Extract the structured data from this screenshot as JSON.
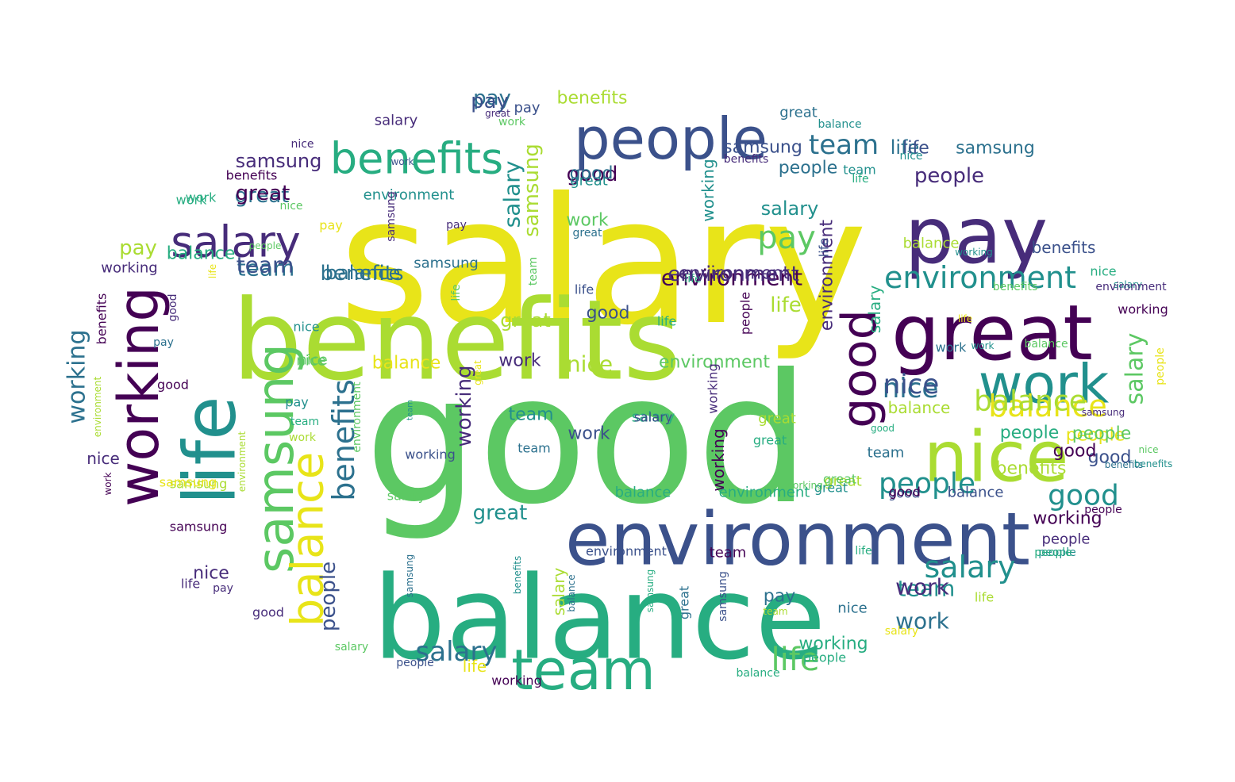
{
  "palette": {
    "v0": "#440154",
    "v1": "#472c7a",
    "v2": "#3b518b",
    "v3": "#2c718e",
    "v4": "#21908d",
    "v5": "#27ad81",
    "v6": "#5cc863",
    "v7": "#aadc32",
    "v8": "#e8e419"
  },
  "words": [
    {
      "text": "salary",
      "c": "v8"
    },
    {
      "text": "good",
      "c": "v6"
    },
    {
      "text": "benefits",
      "c": "v7"
    },
    {
      "text": "balance",
      "c": "v5"
    },
    {
      "text": "environment",
      "c": "v2"
    },
    {
      "text": "great",
      "c": "v0"
    },
    {
      "text": "pay",
      "c": "v1"
    },
    {
      "text": "people",
      "c": "v2"
    },
    {
      "text": "nice",
      "c": "v7"
    },
    {
      "text": "work",
      "c": "v4"
    },
    {
      "text": "life",
      "c": "v4"
    },
    {
      "text": "working",
      "c": "v0"
    },
    {
      "text": "samsung",
      "c": "v6"
    },
    {
      "text": "team",
      "c": "v5"
    },
    {
      "text": "benefits",
      "c": "v5"
    },
    {
      "text": "salary",
      "c": "v1"
    },
    {
      "text": "environment",
      "c": "v4"
    },
    {
      "text": "good",
      "c": "v0"
    },
    {
      "text": "balance",
      "c": "v8"
    },
    {
      "text": "samsung",
      "c": "v6"
    },
    {
      "text": "benefits",
      "c": "v3"
    },
    {
      "text": "balance",
      "c": "v8"
    },
    {
      "text": "people",
      "c": "v4"
    },
    {
      "text": "good",
      "c": "v4"
    },
    {
      "text": "salary",
      "c": "v3"
    },
    {
      "text": "salary",
      "c": "v4"
    },
    {
      "text": "samsung",
      "c": "v7"
    },
    {
      "text": "nice",
      "c": "v3"
    },
    {
      "text": "environment",
      "c": "v0"
    },
    {
      "text": "pay",
      "c": "v6"
    },
    {
      "text": "people",
      "c": "v2"
    },
    {
      "text": "salary",
      "c": "v4"
    },
    {
      "text": "team",
      "c": "v3"
    },
    {
      "text": "life",
      "c": "v7"
    },
    {
      "text": "great",
      "c": "v3"
    },
    {
      "text": "good",
      "c": "v0"
    },
    {
      "text": "team",
      "c": "v3"
    },
    {
      "text": "great",
      "c": "v7"
    },
    {
      "text": "working",
      "c": "v3"
    },
    {
      "text": "benefits",
      "c": "v5"
    },
    {
      "text": "working",
      "c": "v4"
    },
    {
      "text": "salary",
      "c": "v5"
    },
    {
      "text": "team",
      "c": "v4"
    },
    {
      "text": "working",
      "c": "v1"
    },
    {
      "text": "benefits",
      "c": "v3"
    },
    {
      "text": "people",
      "c": "v1"
    },
    {
      "text": "salary",
      "c": "v6"
    },
    {
      "text": "balance",
      "c": "v3"
    },
    {
      "text": "people",
      "c": "v8"
    },
    {
      "text": "people",
      "c": "v1"
    },
    {
      "text": "good",
      "c": "v2"
    },
    {
      "text": "good",
      "c": "v2"
    },
    {
      "text": "nice",
      "c": "v3"
    },
    {
      "text": "great",
      "c": "v4"
    },
    {
      "text": "great",
      "c": "v7"
    },
    {
      "text": "environment",
      "c": "v1"
    },
    {
      "text": "pay",
      "c": "v3"
    },
    {
      "text": "pay",
      "c": "v3"
    },
    {
      "text": "life",
      "c": "v3"
    },
    {
      "text": "work",
      "c": "v3"
    },
    {
      "text": "life",
      "c": "v6"
    },
    {
      "text": "nice",
      "c": "v6"
    },
    {
      "text": "great",
      "c": "v4"
    },
    {
      "text": "samsung",
      "c": "v1"
    },
    {
      "text": "balance",
      "c": "v8"
    },
    {
      "text": "nice",
      "c": "v7"
    },
    {
      "text": "samsung",
      "c": "v7"
    },
    {
      "text": "environment",
      "c": "v6"
    },
    {
      "text": "working",
      "c": "v0"
    },
    {
      "text": "life",
      "c": "v5"
    },
    {
      "text": "work",
      "c": "v1"
    },
    {
      "text": "salary",
      "c": "v7"
    },
    {
      "text": "environment",
      "c": "v1"
    },
    {
      "text": "balance",
      "c": "v7"
    },
    {
      "text": "great",
      "c": "v4"
    },
    {
      "text": "work",
      "c": "v2"
    },
    {
      "text": "working",
      "c": "v5"
    },
    {
      "text": "salary",
      "c": "v5"
    },
    {
      "text": "team",
      "c": "v4"
    },
    {
      "text": "samsung",
      "c": "v3"
    },
    {
      "text": "working",
      "c": "v0"
    },
    {
      "text": "pay",
      "c": "v7"
    },
    {
      "text": "good",
      "c": "v0"
    },
    {
      "text": "team",
      "c": "v2"
    },
    {
      "text": "work",
      "c": "v1"
    },
    {
      "text": "benefits",
      "c": "v7"
    },
    {
      "text": "nice",
      "c": "v2"
    },
    {
      "text": "team",
      "c": "v3"
    },
    {
      "text": "people",
      "c": "v5"
    },
    {
      "text": "balance",
      "c": "v7"
    },
    {
      "text": "benefits",
      "c": "v7"
    },
    {
      "text": "life",
      "c": "v2"
    },
    {
      "text": "pay",
      "c": "v2"
    },
    {
      "text": "benefits",
      "c": "v2"
    },
    {
      "text": "pay",
      "c": "v8"
    },
    {
      "text": "work",
      "c": "v6"
    },
    {
      "text": "great",
      "c": "v3"
    },
    {
      "text": "environment",
      "c": "v4"
    },
    {
      "text": "environment",
      "c": "v1"
    },
    {
      "text": "samsung",
      "c": "v2"
    },
    {
      "text": "samsung",
      "c": "v8"
    },
    {
      "text": "people",
      "c": "v6"
    },
    {
      "text": "working",
      "c": "v2"
    },
    {
      "text": "good",
      "c": "v2"
    },
    {
      "text": "work",
      "c": "v5"
    },
    {
      "text": "great",
      "c": "v0"
    },
    {
      "text": "benefits",
      "c": "v0"
    },
    {
      "text": "nice",
      "c": "v1"
    },
    {
      "text": "life",
      "c": "v8"
    },
    {
      "text": "working",
      "c": "v0"
    },
    {
      "text": "pay",
      "c": "v1"
    },
    {
      "text": "salary",
      "c": "v1"
    },
    {
      "text": "work",
      "c": "v5"
    },
    {
      "text": "working",
      "c": "v6"
    },
    {
      "text": "good",
      "c": "v3"
    },
    {
      "text": "balance",
      "c": "v4"
    },
    {
      "text": "environment",
      "c": "v2"
    },
    {
      "text": "nice",
      "c": "v6"
    },
    {
      "text": "great",
      "c": "v7"
    },
    {
      "text": "people",
      "c": "v3"
    },
    {
      "text": "people",
      "c": "v4"
    },
    {
      "text": "balance",
      "c": "v2"
    },
    {
      "text": "life",
      "c": "v5"
    },
    {
      "text": "team",
      "c": "v0"
    },
    {
      "text": "life",
      "c": "v1"
    },
    {
      "text": "pay",
      "c": "v1"
    },
    {
      "text": "life",
      "c": "v8"
    },
    {
      "text": "good",
      "c": "v1"
    },
    {
      "text": "samsung",
      "c": "v3"
    },
    {
      "text": "benefits",
      "c": "v0"
    },
    {
      "text": "salary",
      "c": "v2"
    },
    {
      "text": "nice",
      "c": "v4"
    },
    {
      "text": "team",
      "c": "v7"
    },
    {
      "text": "samsung",
      "c": "v0"
    },
    {
      "text": "balance",
      "c": "v5"
    },
    {
      "text": "great",
      "c": "v5"
    },
    {
      "text": "salary",
      "c": "v4"
    },
    {
      "text": "good",
      "c": "v0"
    },
    {
      "text": "team",
      "c": "v3"
    },
    {
      "text": "work",
      "c": "v3"
    },
    {
      "text": "life",
      "c": "v5"
    },
    {
      "text": "working",
      "c": "v1"
    },
    {
      "text": "benefits",
      "c": "v1"
    },
    {
      "text": "environment",
      "c": "v5"
    },
    {
      "text": "people",
      "c": "v2"
    },
    {
      "text": "people",
      "c": "v5"
    },
    {
      "text": "life",
      "c": "v2"
    },
    {
      "text": "great",
      "c": "v3"
    },
    {
      "text": "team",
      "c": "v6"
    },
    {
      "text": "good",
      "c": "v1"
    },
    {
      "text": "salary",
      "c": "v6"
    },
    {
      "text": "people",
      "c": "v8"
    },
    {
      "text": "life",
      "c": "v7"
    },
    {
      "text": "nice",
      "c": "v6"
    },
    {
      "text": "balance",
      "c": "v5"
    },
    {
      "text": "balance",
      "c": "v7"
    },
    {
      "text": "salary",
      "c": "v8"
    },
    {
      "text": "benefits",
      "c": "v6"
    },
    {
      "text": "great",
      "c": "v6"
    },
    {
      "text": "salary",
      "c": "v6"
    },
    {
      "text": "pay",
      "c": "v4"
    },
    {
      "text": "people",
      "c": "v0"
    },
    {
      "text": "samsung",
      "c": "v1"
    },
    {
      "text": "balance",
      "c": "v6"
    },
    {
      "text": "nice",
      "c": "v5"
    },
    {
      "text": "work",
      "c": "v6"
    },
    {
      "text": "good",
      "c": "v5"
    },
    {
      "text": "working",
      "c": "v1"
    },
    {
      "text": "pay",
      "c": "v3"
    },
    {
      "text": "benefits",
      "c": "v3"
    },
    {
      "text": "samsung",
      "c": "v1"
    },
    {
      "text": "team",
      "c": "v5"
    },
    {
      "text": "great",
      "c": "v1"
    },
    {
      "text": "work",
      "c": "v2"
    },
    {
      "text": "people",
      "c": "v6"
    },
    {
      "text": "work",
      "c": "v4"
    },
    {
      "text": "great",
      "c": "v3"
    },
    {
      "text": "nice",
      "c": "v6"
    },
    {
      "text": "environment",
      "c": "v7"
    },
    {
      "text": "environment",
      "c": "v1"
    },
    {
      "text": "samsung",
      "c": "v2"
    },
    {
      "text": "people",
      "c": "v5"
    },
    {
      "text": "good",
      "c": "v0"
    },
    {
      "text": "team",
      "c": "v4"
    },
    {
      "text": "life",
      "c": "v5"
    },
    {
      "text": "environment",
      "c": "v7"
    },
    {
      "text": "life",
      "c": "v8"
    },
    {
      "text": "work",
      "c": "v0"
    },
    {
      "text": "working",
      "c": "v4"
    },
    {
      "text": "nice",
      "c": "v4"
    },
    {
      "text": "working",
      "c": "v0"
    },
    {
      "text": "pay",
      "c": "v3"
    },
    {
      "text": "pay",
      "c": "v5"
    },
    {
      "text": "pay",
      "c": "v2"
    },
    {
      "text": "good",
      "c": "v2"
    },
    {
      "text": "benefits",
      "c": "v1"
    },
    {
      "text": "benefits",
      "c": "v4"
    },
    {
      "text": "work",
      "c": "v7"
    },
    {
      "text": "balance",
      "c": "v3"
    },
    {
      "text": "great",
      "c": "v6"
    },
    {
      "text": "great",
      "c": "v7"
    },
    {
      "text": "team",
      "c": "v4"
    },
    {
      "text": "nice",
      "c": "v1"
    },
    {
      "text": "salary",
      "c": "v7"
    },
    {
      "text": "life",
      "c": "v6"
    },
    {
      "text": "balance",
      "c": "v3"
    },
    {
      "text": "good",
      "c": "v1"
    },
    {
      "text": "working",
      "c": "v0"
    },
    {
      "text": "samsung",
      "c": "v5"
    },
    {
      "text": "benefits",
      "c": "v4"
    },
    {
      "text": "environment",
      "c": "v5"
    },
    {
      "text": "nice",
      "c": "v1"
    },
    {
      "text": "people",
      "c": "v0"
    },
    {
      "text": "balance",
      "c": "v4"
    },
    {
      "text": "samsung",
      "c": "v3"
    },
    {
      "text": "benefits",
      "c": "v6"
    },
    {
      "text": "pay",
      "c": "v0"
    },
    {
      "text": "great",
      "c": "v8"
    },
    {
      "text": "team",
      "c": "v3"
    },
    {
      "text": "good",
      "c": "v6"
    },
    {
      "text": "life",
      "c": "v2"
    },
    {
      "text": "environment",
      "c": "v6"
    },
    {
      "text": "work",
      "c": "v5"
    },
    {
      "text": "people",
      "c": "v3"
    }
  ]
}
